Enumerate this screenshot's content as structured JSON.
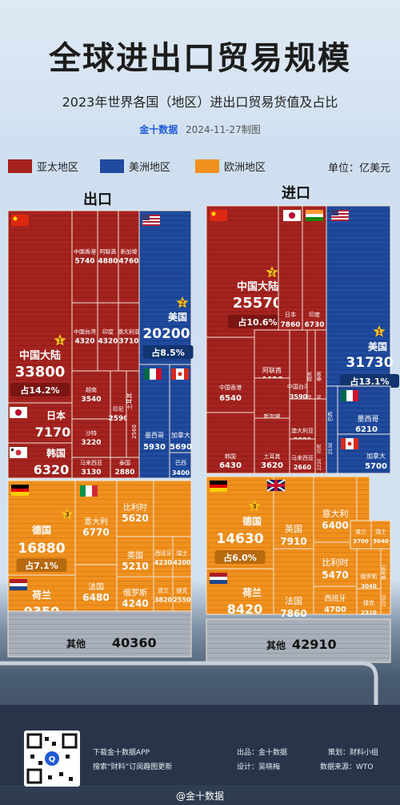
{
  "title": "全球进出口贸易规模",
  "subtitle": "2023年世界各国（地区）进出口贸易货值及占比",
  "source": {
    "brand": "金十数据",
    "date": "2024-11-27制图"
  },
  "legend": [
    {
      "name": "亚太地区",
      "color": "#a5231f"
    },
    {
      "name": "美洲地区",
      "color": "#1f4a9e"
    },
    {
      "name": "欧洲地区",
      "color": "#f0901e"
    }
  ],
  "unit": "单位：亿美元",
  "chart_data": [
    {
      "type": "treemap",
      "title": "出口",
      "regions": [
        {
          "region": "亚太地区",
          "items": [
            {
              "name": "中国大陆",
              "value": 33800,
              "share": "占14.2%",
              "rank": 1
            },
            {
              "name": "日本",
              "value": 7170
            },
            {
              "name": "韩国",
              "value": 6320
            },
            {
              "name": "中国香港",
              "value": 5740
            },
            {
              "name": "阿联酋",
              "value": 4880
            },
            {
              "name": "新加坡",
              "value": 4760
            },
            {
              "name": "中国台湾",
              "value": 4320
            },
            {
              "name": "印度",
              "value": 4320
            },
            {
              "name": "澳大利亚",
              "value": 3710
            },
            {
              "name": "越南",
              "value": 3540
            },
            {
              "name": "沙特",
              "value": 3220
            },
            {
              "name": "印尼",
              "value": 2590
            },
            {
              "name": "土耳其",
              "value": 2560
            },
            {
              "name": "马来西亚",
              "value": 3130
            },
            {
              "name": "泰国",
              "value": 2880
            }
          ]
        },
        {
          "region": "美洲地区",
          "items": [
            {
              "name": "美国",
              "value": 20200,
              "share": "占8.5%",
              "rank": 2
            },
            {
              "name": "墨西哥",
              "value": 5930
            },
            {
              "name": "加拿大",
              "value": 5690
            },
            {
              "name": "巴西",
              "value": 3400
            }
          ]
        },
        {
          "region": "欧洲地区",
          "items": [
            {
              "name": "德国",
              "value": 16880,
              "share": "占7.1%",
              "rank": 3
            },
            {
              "name": "荷兰",
              "value": 9350
            },
            {
              "name": "意大利",
              "value": 6770
            },
            {
              "name": "法国",
              "value": 6480
            },
            {
              "name": "比利时",
              "value": 5620
            },
            {
              "name": "英国",
              "value": 5210
            },
            {
              "name": "俄罗斯",
              "value": 4240
            },
            {
              "name": "西班牙",
              "value": 4230
            },
            {
              "name": "瑞士",
              "value": 4200
            },
            {
              "name": "波兰",
              "value": 3820
            },
            {
              "name": "捷克",
              "value": 2550
            }
          ]
        }
      ],
      "other": {
        "name": "其他",
        "value": 40360
      }
    },
    {
      "type": "treemap",
      "title": "进口",
      "regions": [
        {
          "region": "亚太地区",
          "items": [
            {
              "name": "中国大陆",
              "value": 25570,
              "share": "占10.6%",
              "rank": 2
            },
            {
              "name": "日本",
              "value": 7860
            },
            {
              "name": "印度",
              "value": 6730
            },
            {
              "name": "中国香港",
              "value": 6540
            },
            {
              "name": "阿联酋",
              "value": 4490
            },
            {
              "name": "新加坡",
              "value": 4230
            },
            {
              "name": "中国台湾",
              "value": 3590
            },
            {
              "name": "越南",
              "value": 3260
            },
            {
              "name": "土耳其",
              "value": 3620
            },
            {
              "name": "泰国",
              "value": 2900
            },
            {
              "name": "澳大利亚",
              "value": 2880
            },
            {
              "name": "马来西亚",
              "value": 2660
            },
            {
              "name": "韩国",
              "value": 6430
            },
            {
              "name": "印尼",
              "value": 2220
            }
          ]
        },
        {
          "region": "美洲地区",
          "items": [
            {
              "name": "美国",
              "value": 31730,
              "share": "占13.1%",
              "rank": 1
            },
            {
              "name": "墨西哥",
              "value": 6210
            },
            {
              "name": "加拿大",
              "value": 5700
            },
            {
              "name": "巴西",
              "value": 2530
            }
          ]
        },
        {
          "region": "欧洲地区",
          "items": [
            {
              "name": "德国",
              "value": 14630,
              "share": "占6.0%",
              "rank": 3
            },
            {
              "name": "荷兰",
              "value": 8420
            },
            {
              "name": "英国",
              "value": 7910
            },
            {
              "name": "法国",
              "value": 7860
            },
            {
              "name": "意大利",
              "value": 6400
            },
            {
              "name": "比利时",
              "value": 5470
            },
            {
              "name": "西班牙",
              "value": 4700
            },
            {
              "name": "波兰",
              "value": 3700
            },
            {
              "name": "瑞士",
              "value": 3640
            },
            {
              "name": "俄罗斯",
              "value": 3040
            },
            {
              "name": "捷克",
              "value": 2310
            },
            {
              "name": "奥地利",
              "value": 2250
            }
          ]
        }
      ],
      "other": {
        "name": "其他",
        "value": 42910
      }
    }
  ],
  "footer": {
    "app_line1": "下载金十数据APP",
    "app_line2": "搜索“财料”订阅趣图更新",
    "producer_label": "出品：",
    "producer": "金十数据",
    "design_label": "设计：",
    "designer": "吴晓梅",
    "planner_label": "策划：",
    "planner": "财料小组",
    "datasource_label": "数据来源：",
    "datasource": "WTO"
  },
  "weibo": "@金十数据"
}
